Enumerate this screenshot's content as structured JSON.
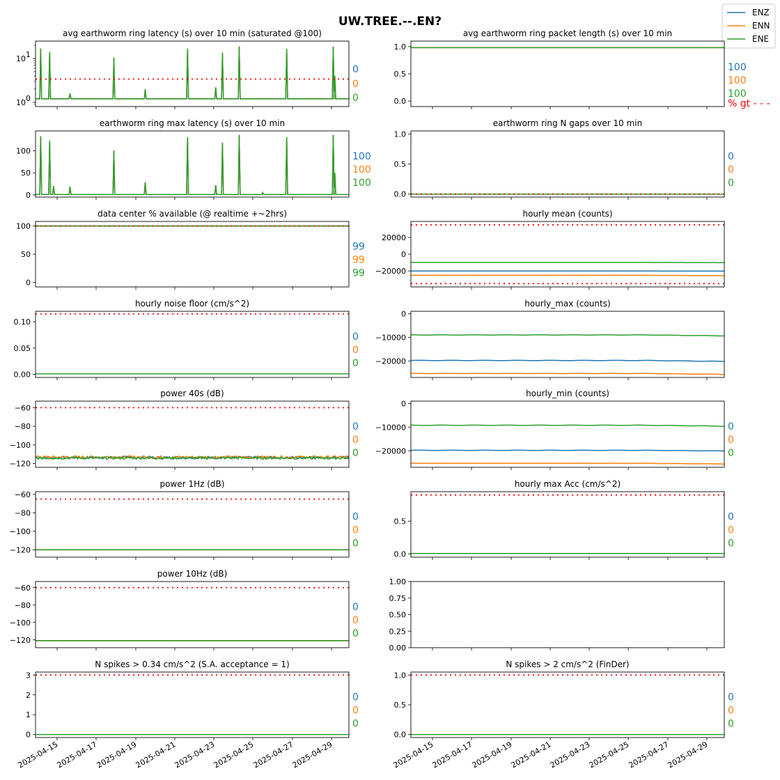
{
  "figure": {
    "title": "UW.TREE.--.EN?",
    "legend": {
      "placement": "top-right",
      "entries": [
        {
          "name": "ENZ",
          "color": "#1f77b4"
        },
        {
          "name": "ENN",
          "color": "#ff7f0e"
        },
        {
          "name": "ENE",
          "color": "#2ca02c"
        }
      ]
    },
    "threshold_color": "#ff0000",
    "x_ticks": [
      "2025-04-15",
      "2025-04-17",
      "2025-04-19",
      "2025-04-21",
      "2025-04-23",
      "2025-04-25",
      "2025-04-27",
      "2025-04-29"
    ]
  },
  "chart_data": [
    {
      "id": "latency-avg",
      "type": "line",
      "column": 0,
      "row": 0,
      "title": "avg earthworm ring latency (s)   over 10 min (saturated @100)",
      "yscale": "log",
      "ylim": [
        0.8,
        25
      ],
      "yticks": [
        {
          "v": 1,
          "base": "10",
          "exp": "0"
        },
        {
          "v": 10,
          "base": "10",
          "exp": "1"
        }
      ],
      "threshold": [
        3.4
      ],
      "baseline": 1.2,
      "spikes": [
        [
          0.33,
          17
        ],
        [
          0.9,
          14
        ],
        [
          2.2,
          1.6
        ],
        [
          5.0,
          10.5
        ],
        [
          7.0,
          2.0
        ],
        [
          9.7,
          17
        ],
        [
          11.5,
          2.2
        ],
        [
          11.93,
          13.5
        ],
        [
          13.0,
          19
        ],
        [
          16.03,
          16.5
        ],
        [
          19.0,
          18.5
        ],
        [
          19.1,
          4.0
        ]
      ],
      "stats": [
        "0",
        "0",
        "0"
      ]
    },
    {
      "id": "packet-length",
      "type": "line",
      "column": 1,
      "row": 0,
      "title": "avg earthworm ring packet length (s)   over 10 min",
      "ylim": [
        -0.1,
        1.1
      ],
      "yticks": [
        {
          "v": 0,
          "label": "0.0"
        },
        {
          "v": 0.5,
          "label": "0.5"
        },
        {
          "v": 1,
          "label": "1.0"
        }
      ],
      "constant": 0.98,
      "stats": [
        "100",
        "100",
        "100"
      ],
      "stat_note": "% gt - - -"
    },
    {
      "id": "latency-max",
      "type": "line",
      "column": 0,
      "row": 1,
      "title": "earthworm ring max latency (s)   over 10 min",
      "ylim": [
        -5,
        145
      ],
      "yticks": [
        {
          "v": 0,
          "label": "0"
        },
        {
          "v": 50,
          "label": "50"
        },
        {
          "v": 100,
          "label": "100"
        }
      ],
      "baseline": 1,
      "spikes": [
        [
          0.33,
          133
        ],
        [
          0.9,
          123
        ],
        [
          1.15,
          20
        ],
        [
          2.2,
          19
        ],
        [
          5.0,
          101
        ],
        [
          7.0,
          29
        ],
        [
          9.7,
          131
        ],
        [
          11.5,
          22
        ],
        [
          11.93,
          118
        ],
        [
          13.0,
          136
        ],
        [
          14.5,
          5
        ],
        [
          16.03,
          131
        ],
        [
          19.0,
          136
        ],
        [
          19.1,
          50
        ]
      ],
      "stats": [
        "100",
        "100",
        "100"
      ]
    },
    {
      "id": "n-gaps",
      "type": "line",
      "column": 1,
      "row": 1,
      "title": "earthworm ring N gaps   over 10 min",
      "ylim": [
        -0.05,
        1.05
      ],
      "yticks": [
        {
          "v": 0,
          "label": "0.0"
        },
        {
          "v": 0.5,
          "label": "0.5"
        },
        {
          "v": 1,
          "label": "1.0"
        }
      ],
      "threshold": [
        0
      ],
      "constant": 0,
      "stats": [
        "0",
        "0",
        "0"
      ]
    },
    {
      "id": "availability",
      "type": "line",
      "column": 0,
      "row": 2,
      "title": "data center % available (@ realtime +~2hrs)",
      "ylim": [
        -8,
        108
      ],
      "yticks": [
        {
          "v": 0,
          "label": "0"
        },
        {
          "v": 50,
          "label": "50"
        },
        {
          "v": 100,
          "label": "100"
        }
      ],
      "threshold": [
        100
      ],
      "constant": 100,
      "stats": [
        "99",
        "99",
        "99"
      ]
    },
    {
      "id": "hourly-mean",
      "type": "line",
      "column": 1,
      "row": 2,
      "title": "hourly mean (counts)",
      "ylim": [
        -39000,
        39000
      ],
      "yticks": [
        {
          "v": -20000,
          "label": "−20000"
        },
        {
          "v": 0,
          "label": "0"
        },
        {
          "v": 20000,
          "label": "20000"
        }
      ],
      "threshold": [
        35000,
        -35000
      ],
      "series_levels": [
        [
          -20000,
          -20200
        ],
        [
          -25200,
          -25600
        ],
        [
          -9800,
          -10000
        ]
      ]
    },
    {
      "id": "noise-floor",
      "type": "line",
      "column": 0,
      "row": 3,
      "title": "hourly noise floor (cm/s^2)",
      "ylim": [
        -0.006,
        0.12
      ],
      "yticks": [
        {
          "v": 0,
          "label": "0.00"
        },
        {
          "v": 0.05,
          "label": "0.05"
        },
        {
          "v": 0.1,
          "label": "0.10"
        }
      ],
      "threshold": [
        0.115
      ],
      "constant": 0.001,
      "stats": [
        "0",
        "0",
        "0"
      ]
    },
    {
      "id": "hourly-max",
      "type": "line",
      "column": 1,
      "row": 3,
      "title": "hourly_max (counts)",
      "ylim": [
        -27000,
        1000
      ],
      "yticks": [
        {
          "v": -20000,
          "label": "−20000"
        },
        {
          "v": -10000,
          "label": "−10000"
        },
        {
          "v": 0,
          "label": "0"
        }
      ],
      "series_levels": [
        [
          -19800,
          -20200
        ],
        [
          -25300,
          -25700
        ],
        [
          -9000,
          -9400
        ]
      ]
    },
    {
      "id": "power-40s",
      "type": "line",
      "column": 0,
      "row": 4,
      "title": "power 40s (dB)",
      "ylim": [
        -124,
        -53
      ],
      "yticks": [
        {
          "v": -120,
          "label": "−120"
        },
        {
          "v": -100,
          "label": "−100"
        },
        {
          "v": -80,
          "label": "−80"
        },
        {
          "v": -60,
          "label": "−60"
        }
      ],
      "threshold": [
        -60
      ],
      "series_levels": [
        [
          -113.5,
          -113.5
        ],
        [
          -113,
          -113
        ],
        [
          -114,
          -114
        ]
      ],
      "noise": 1.4,
      "stats": [
        "0",
        "0",
        "0"
      ]
    },
    {
      "id": "hourly-min",
      "type": "line",
      "column": 1,
      "row": 4,
      "title": "hourly_min (counts)",
      "ylim": [
        -27000,
        1000
      ],
      "yticks": [
        {
          "v": -20000,
          "label": "−20000"
        },
        {
          "v": -10000,
          "label": "−10000"
        },
        {
          "v": 0,
          "label": "0"
        }
      ],
      "series_levels": [
        [
          -19800,
          -20100
        ],
        [
          -25300,
          -25600
        ],
        [
          -9200,
          -9600
        ]
      ],
      "stats": [
        "0",
        "0",
        "0"
      ]
    },
    {
      "id": "power-1hz",
      "type": "line",
      "column": 0,
      "row": 5,
      "title": "power 1Hz (dB)",
      "ylim": [
        -128,
        -57
      ],
      "yticks": [
        {
          "v": -120,
          "label": "−120"
        },
        {
          "v": -100,
          "label": "−100"
        },
        {
          "v": -80,
          "label": "−80"
        },
        {
          "v": -60,
          "label": "−60"
        }
      ],
      "threshold": [
        -65
      ],
      "constant": -120,
      "stats": [
        "0",
        "0",
        "0"
      ]
    },
    {
      "id": "hourly-max-acc",
      "type": "line",
      "column": 1,
      "row": 5,
      "title": "hourly max Acc (cm/s^2)",
      "ylim": [
        -0.05,
        0.95
      ],
      "yticks": [
        {
          "v": 0,
          "label": "0.0"
        },
        {
          "v": 0.5,
          "label": "0.5"
        }
      ],
      "threshold": [
        0.9
      ],
      "constant": 0.005,
      "stats": [
        "0",
        "0",
        "0"
      ]
    },
    {
      "id": "power-10hz",
      "type": "line",
      "column": 0,
      "row": 6,
      "title": "power 10Hz (dB)",
      "ylim": [
        -129,
        -53
      ],
      "yticks": [
        {
          "v": -120,
          "label": "−120"
        },
        {
          "v": -100,
          "label": "−100"
        },
        {
          "v": -80,
          "label": "−80"
        },
        {
          "v": -60,
          "label": "−60"
        }
      ],
      "threshold": [
        -60
      ],
      "constant": -121,
      "stats": [
        "0",
        "0",
        "0"
      ]
    },
    {
      "id": "empty-panel",
      "type": "line",
      "column": 1,
      "row": 6,
      "title": "",
      "ylim": [
        0,
        1
      ],
      "yticks": [
        {
          "v": 0,
          "label": "0.00"
        },
        {
          "v": 0.25,
          "label": "0.25"
        },
        {
          "v": 0.5,
          "label": "0.50"
        },
        {
          "v": 0.75,
          "label": "0.75"
        },
        {
          "v": 1,
          "label": "1.00"
        }
      ],
      "empty": true
    },
    {
      "id": "spikes-034",
      "type": "line",
      "column": 0,
      "row": 7,
      "title": "N spikes > 0.34 cm/s^2 (S.A. acceptance = 1)",
      "ylim": [
        -0.15,
        3.15
      ],
      "yticks": [
        {
          "v": 0,
          "label": "0"
        },
        {
          "v": 1,
          "label": "1"
        },
        {
          "v": 2,
          "label": "2"
        },
        {
          "v": 3,
          "label": "3"
        }
      ],
      "threshold": [
        3
      ],
      "constant": 0,
      "stats": [
        "0",
        "0",
        "0"
      ]
    },
    {
      "id": "spikes-2",
      "type": "line",
      "column": 1,
      "row": 7,
      "title": "N spikes > 2 cm/s^2 (FinDer)",
      "ylim": [
        -0.05,
        1.05
      ],
      "yticks": [
        {
          "v": 0,
          "label": "0.0"
        },
        {
          "v": 0.5,
          "label": "0.5"
        },
        {
          "v": 1,
          "label": "1.0"
        }
      ],
      "threshold": [
        1
      ],
      "constant": 0,
      "stats": [
        "0",
        "0",
        "0"
      ]
    }
  ]
}
